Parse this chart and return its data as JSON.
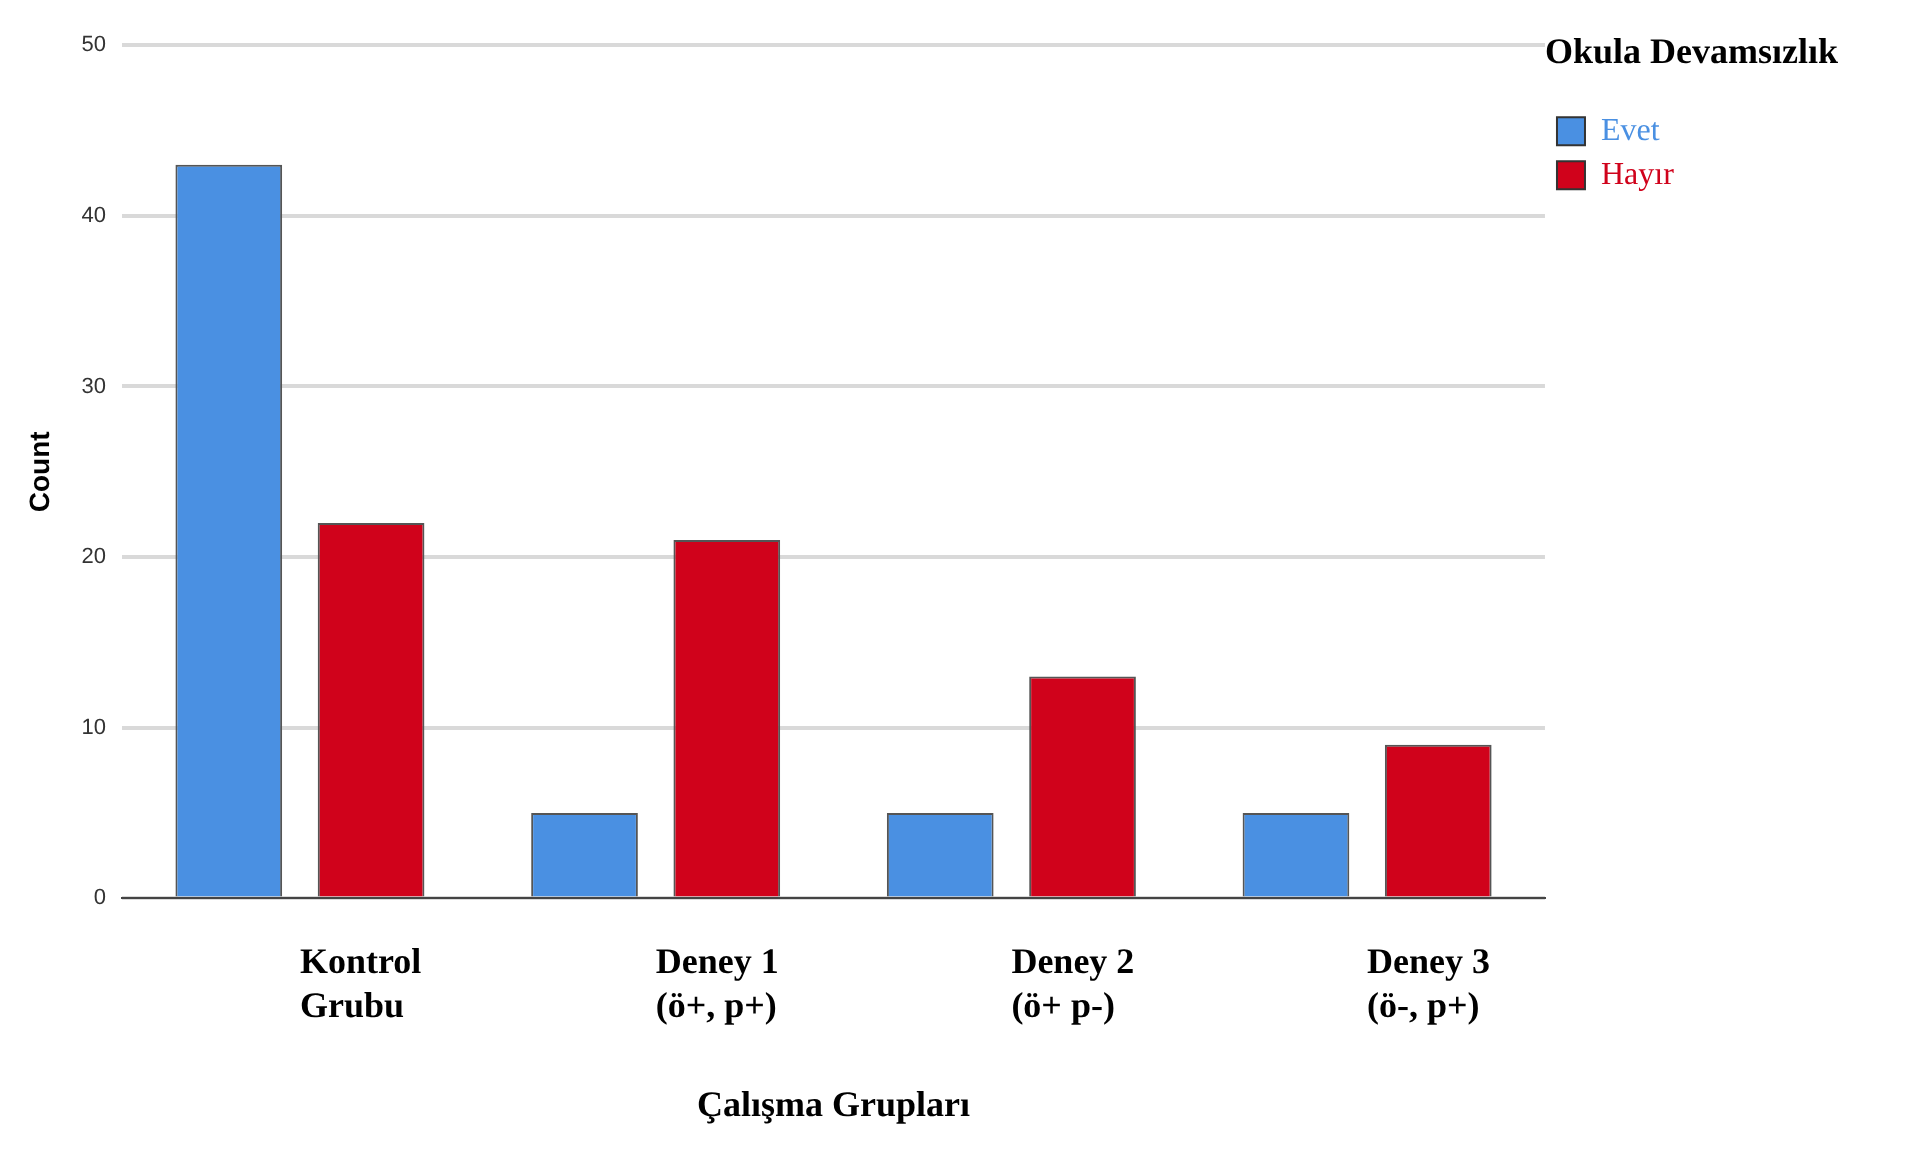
{
  "chart_data": {
    "type": "bar",
    "xlabel": "Çalışma Grupları",
    "ylabel": "Count",
    "legend_title": "Okula Devamsızlık",
    "categories": [
      "Kontrol Grubu",
      "Deney 1 (ö+, p+)",
      "Deney 2 (ö+ p-)",
      "Deney 3 (ö-, p+)"
    ],
    "series": [
      {
        "name": "Evet",
        "color": "#4a90e2",
        "values": [
          43,
          5,
          5,
          5
        ]
      },
      {
        "name": "Hayır",
        "color": "#d0021b",
        "values": [
          22,
          21,
          13,
          9
        ]
      }
    ],
    "ylim": [
      0,
      50
    ],
    "yticks": [
      0,
      10,
      20,
      30,
      40,
      50
    ],
    "grid": "y",
    "legend": "top right"
  }
}
